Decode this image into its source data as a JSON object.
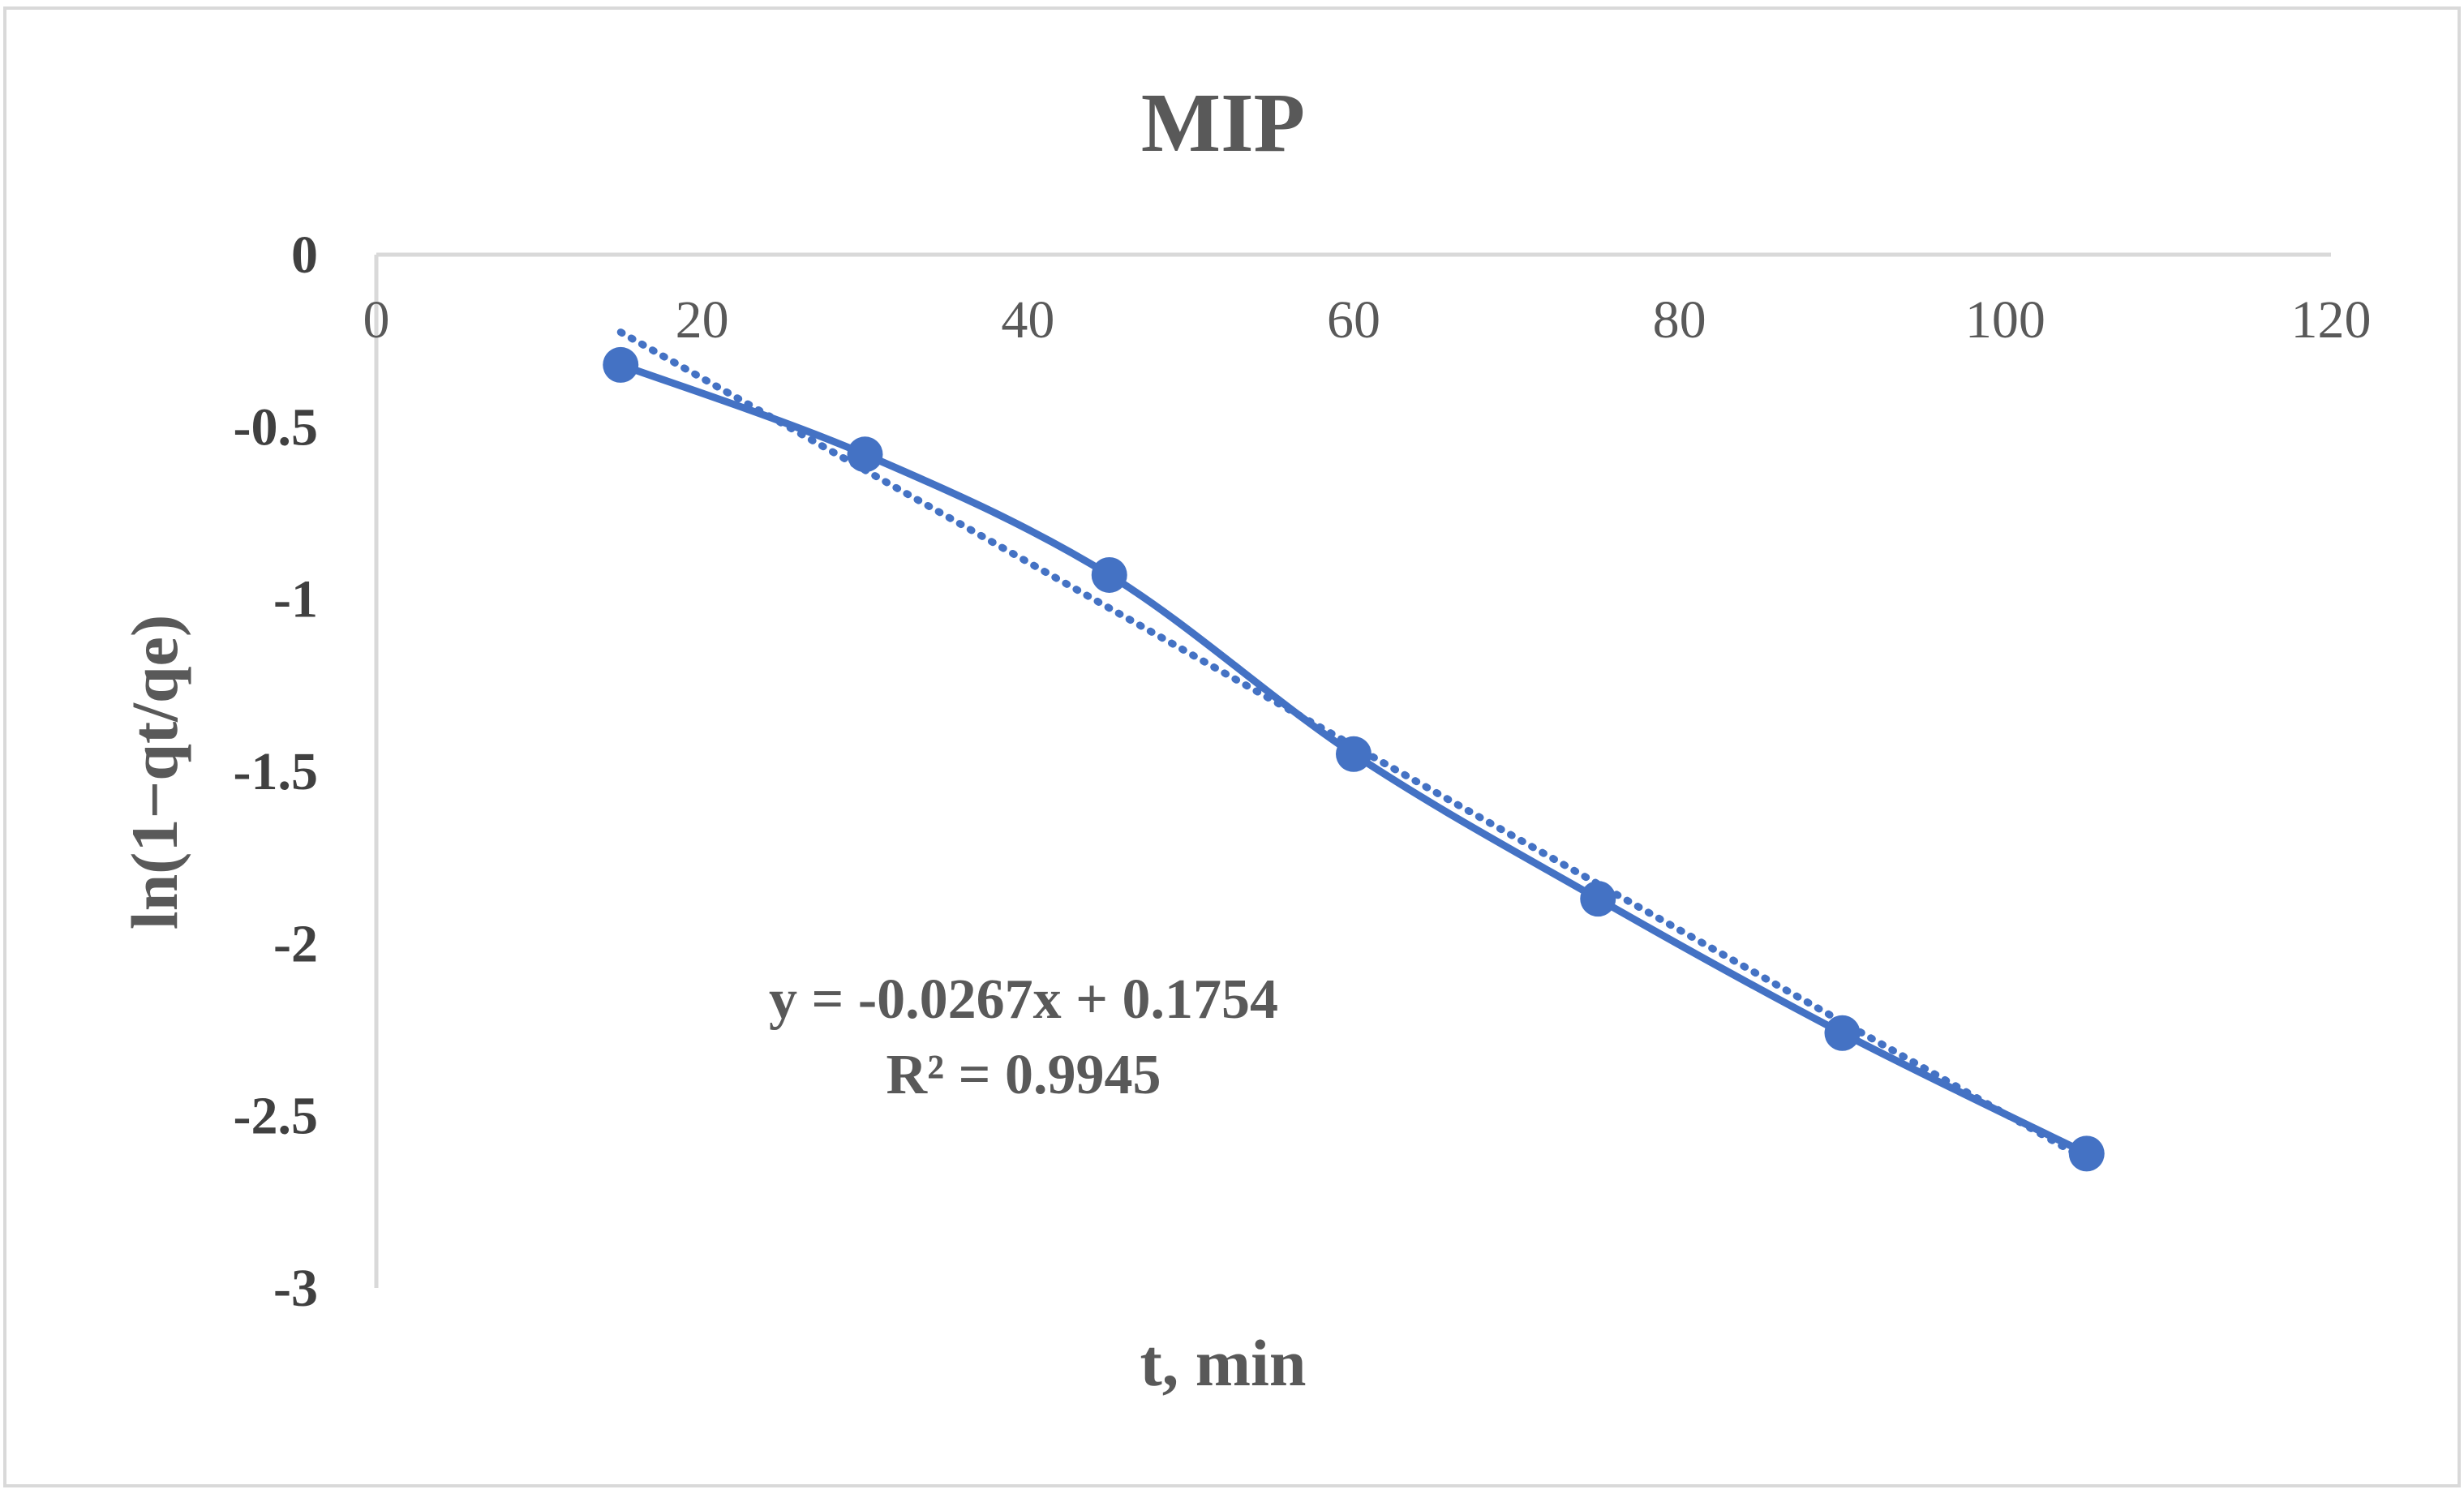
{
  "chart_data": {
    "type": "scatter",
    "title": "MIP",
    "xlabel": "t, min",
    "ylabel": "ln(1−qt/qe)",
    "xlim": [
      0,
      120
    ],
    "ylim": [
      -3,
      0
    ],
    "x_ticks": [
      "0",
      "20",
      "40",
      "60",
      "80",
      "100",
      "120"
    ],
    "y_ticks": [
      "0",
      "-0.5",
      "-1",
      "-1.5",
      "-2",
      "-2.5",
      "-3"
    ],
    "x_tick_values": [
      0,
      20,
      40,
      60,
      80,
      100,
      120
    ],
    "y_tick_values": [
      0,
      -0.5,
      -1,
      -1.5,
      -2,
      -2.5,
      -3
    ],
    "grid": false,
    "series": [
      {
        "name": "MIP",
        "style": "smooth line with markers",
        "color": "#4472C4",
        "x": [
          15,
          30,
          45,
          60,
          75,
          90,
          105
        ],
        "y": [
          -0.32,
          -0.58,
          -0.93,
          -1.45,
          -1.87,
          -2.26,
          -2.61
        ]
      }
    ],
    "trendline": {
      "type": "linear",
      "style": "dotted",
      "color": "#4472C4",
      "slope": -0.0267,
      "intercept": 0.1754,
      "x_range": [
        15,
        105
      ],
      "equation": "y = -0.0267x + 0.1754",
      "r_squared": "R² = 0.9945"
    }
  }
}
